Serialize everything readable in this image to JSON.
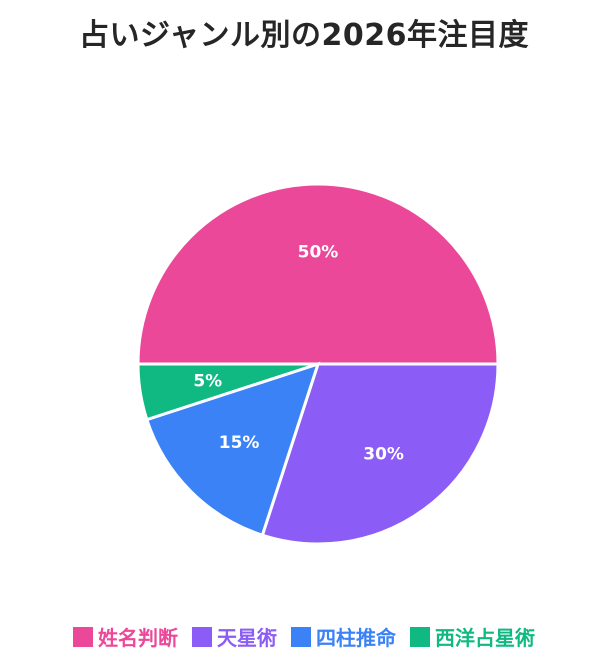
{
  "chart_data": {
    "type": "pie",
    "title": "占いジャンル別の2026年注目度",
    "categories": [
      "姓名判断",
      "天星術",
      "四柱推命",
      "西洋占星術"
    ],
    "values": [
      50,
      30,
      15,
      5
    ],
    "labels": [
      "50%",
      "30%",
      "15%",
      "5%"
    ],
    "colors": [
      "#ec4899",
      "#8b5cf6",
      "#3b82f6",
      "#10b981"
    ],
    "legend_position": "bottom"
  }
}
